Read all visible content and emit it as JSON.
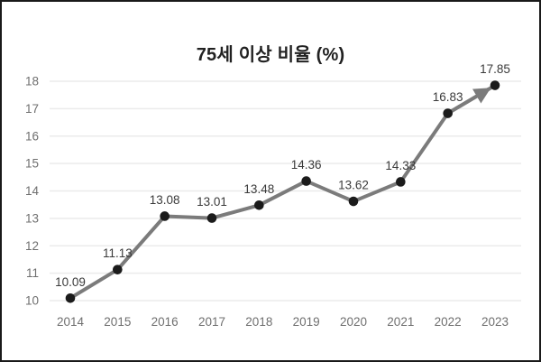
{
  "chart_data": {
    "type": "line",
    "title": "75세 이상 비율 (%)",
    "xlabel": "",
    "ylabel": "",
    "categories": [
      "2014",
      "2015",
      "2016",
      "2017",
      "2018",
      "2019",
      "2020",
      "2021",
      "2022",
      "2023"
    ],
    "values": [
      10.09,
      11.13,
      13.08,
      13.01,
      13.48,
      14.36,
      13.62,
      14.33,
      16.83,
      17.85
    ],
    "value_labels": [
      "10.09",
      "11.13",
      "13.08",
      "13.01",
      "13.48",
      "14.36",
      "13.62",
      "14.33",
      "16.83",
      "17.85"
    ],
    "ylim": [
      10,
      18
    ],
    "yticks": [
      10,
      11,
      12,
      13,
      14,
      15,
      16,
      17,
      18
    ],
    "grid": true,
    "legend": "none",
    "annotations": [
      "arrowhead at end of line pointing to final 2023 data point"
    ],
    "colors": {
      "line": "#7b7b7b",
      "marker": "#1b1b1b",
      "data_label": "#3a3a3a",
      "tick_label": "#6f6f6f",
      "gridline": "#ebebeb",
      "title": "#212121",
      "frame_border": "#1a1a1a",
      "background": "#ffffff"
    }
  }
}
